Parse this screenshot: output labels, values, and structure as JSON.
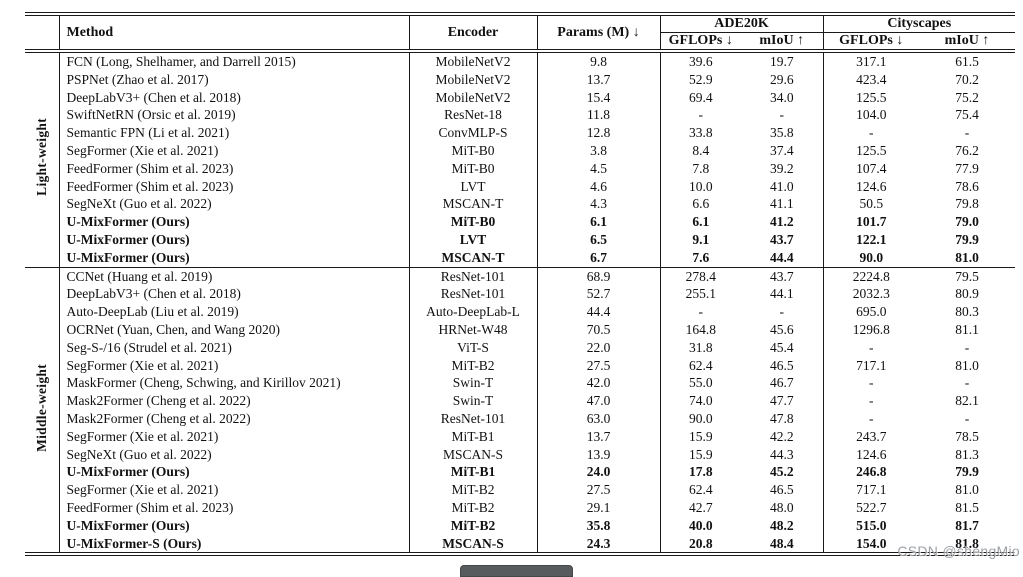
{
  "table": {
    "columns": {
      "method": "Method",
      "encoder": "Encoder",
      "params": "Params (M) ↓",
      "ade20k": "ADE20K",
      "cityscapes": "Cityscapes",
      "gflops": "GFLOPs ↓",
      "miou": "mIoU ↑"
    },
    "sections": [
      {
        "label": "Light-weight",
        "rows": [
          {
            "method": "FCN (Long, Shelhamer, and Darrell 2015)",
            "encoder": "MobileNetV2",
            "params": "9.8",
            "ade_gflops": "39.6",
            "ade_miou": "19.7",
            "city_gflops": "317.1",
            "city_miou": "61.5",
            "bold": false
          },
          {
            "method": "PSPNet (Zhao et al. 2017)",
            "encoder": "MobileNetV2",
            "params": "13.7",
            "ade_gflops": "52.9",
            "ade_miou": "29.6",
            "city_gflops": "423.4",
            "city_miou": "70.2",
            "bold": false
          },
          {
            "method": "DeepLabV3+ (Chen et al. 2018)",
            "encoder": "MobileNetV2",
            "params": "15.4",
            "ade_gflops": "69.4",
            "ade_miou": "34.0",
            "city_gflops": "125.5",
            "city_miou": "75.2",
            "bold": false
          },
          {
            "method": "SwiftNetRN (Orsic et al. 2019)",
            "encoder": "ResNet-18",
            "params": "11.8",
            "ade_gflops": "-",
            "ade_miou": "-",
            "city_gflops": "104.0",
            "city_miou": "75.4",
            "bold": false
          },
          {
            "method": "Semantic FPN (Li et al. 2021)",
            "encoder": "ConvMLP-S",
            "params": "12.8",
            "ade_gflops": "33.8",
            "ade_miou": "35.8",
            "city_gflops": "-",
            "city_miou": "-",
            "bold": false
          },
          {
            "method": "SegFormer (Xie et al. 2021)",
            "encoder": "MiT-B0",
            "params": "3.8",
            "ade_gflops": "8.4",
            "ade_miou": "37.4",
            "city_gflops": "125.5",
            "city_miou": "76.2",
            "bold": false
          },
          {
            "method": "FeedFormer (Shim et al. 2023)",
            "encoder": "MiT-B0",
            "params": "4.5",
            "ade_gflops": "7.8",
            "ade_miou": "39.2",
            "city_gflops": "107.4",
            "city_miou": "77.9",
            "bold": false
          },
          {
            "method": "FeedFormer (Shim et al. 2023)",
            "encoder": "LVT",
            "params": "4.6",
            "ade_gflops": "10.0",
            "ade_miou": "41.0",
            "city_gflops": "124.6",
            "city_miou": "78.6",
            "bold": false
          },
          {
            "method": "SegNeXt (Guo et al. 2022)",
            "encoder": "MSCAN-T",
            "params": "4.3",
            "ade_gflops": "6.6",
            "ade_miou": "41.1",
            "city_gflops": "50.5",
            "city_miou": "79.8",
            "bold": false
          },
          {
            "method": "U-MixFormer (Ours)",
            "encoder": "MiT-B0",
            "params": "6.1",
            "ade_gflops": "6.1",
            "ade_miou": "41.2",
            "city_gflops": "101.7",
            "city_miou": "79.0",
            "bold": true
          },
          {
            "method": "U-MixFormer (Ours)",
            "encoder": "LVT",
            "params": "6.5",
            "ade_gflops": "9.1",
            "ade_miou": "43.7",
            "city_gflops": "122.1",
            "city_miou": "79.9",
            "bold": true
          },
          {
            "method": "U-MixFormer (Ours)",
            "encoder": "MSCAN-T",
            "params": "6.7",
            "ade_gflops": "7.6",
            "ade_miou": "44.4",
            "city_gflops": "90.0",
            "city_miou": "81.0",
            "bold": true
          }
        ]
      },
      {
        "label": "Middle-weight",
        "rows": [
          {
            "method": "CCNet (Huang et al. 2019)",
            "encoder": "ResNet-101",
            "params": "68.9",
            "ade_gflops": "278.4",
            "ade_miou": "43.7",
            "city_gflops": "2224.8",
            "city_miou": "79.5",
            "bold": false
          },
          {
            "method": "DeepLabV3+ (Chen et al. 2018)",
            "encoder": "ResNet-101",
            "params": "52.7",
            "ade_gflops": "255.1",
            "ade_miou": "44.1",
            "city_gflops": "2032.3",
            "city_miou": "80.9",
            "bold": false
          },
          {
            "method": "Auto-DeepLab (Liu et al. 2019)",
            "encoder": "Auto-DeepLab-L",
            "params": "44.4",
            "ade_gflops": "-",
            "ade_miou": "-",
            "city_gflops": "695.0",
            "city_miou": "80.3",
            "bold": false
          },
          {
            "method": "OCRNet (Yuan, Chen, and Wang 2020)",
            "encoder": "HRNet-W48",
            "params": "70.5",
            "ade_gflops": "164.8",
            "ade_miou": "45.6",
            "city_gflops": "1296.8",
            "city_miou": "81.1",
            "bold": false
          },
          {
            "method": "Seg-S-/16 (Strudel et al. 2021)",
            "encoder": "ViT-S",
            "params": "22.0",
            "ade_gflops": "31.8",
            "ade_miou": "45.4",
            "city_gflops": "-",
            "city_miou": "-",
            "bold": false
          },
          {
            "method": "SegFormer (Xie et al. 2021)",
            "encoder": "MiT-B2",
            "params": "27.5",
            "ade_gflops": "62.4",
            "ade_miou": "46.5",
            "city_gflops": "717.1",
            "city_miou": "81.0",
            "bold": false
          },
          {
            "method": "MaskFormer (Cheng, Schwing, and Kirillov 2021)",
            "encoder": "Swin-T",
            "params": "42.0",
            "ade_gflops": "55.0",
            "ade_miou": "46.7",
            "city_gflops": "-",
            "city_miou": "-",
            "bold": false
          },
          {
            "method": "Mask2Former (Cheng et al. 2022)",
            "encoder": "Swin-T",
            "params": "47.0",
            "ade_gflops": "74.0",
            "ade_miou": "47.7",
            "city_gflops": "-",
            "city_miou": "82.1",
            "bold": false
          },
          {
            "method": "Mask2Former (Cheng et al. 2022)",
            "encoder": "ResNet-101",
            "params": "63.0",
            "ade_gflops": "90.0",
            "ade_miou": "47.8",
            "city_gflops": "-",
            "city_miou": "-",
            "bold": false
          },
          {
            "method": "SegFormer (Xie et al. 2021)",
            "encoder": "MiT-B1",
            "params": "13.7",
            "ade_gflops": "15.9",
            "ade_miou": "42.2",
            "city_gflops": "243.7",
            "city_miou": "78.5",
            "bold": false
          },
          {
            "method": "SegNeXt (Guo et al. 2022)",
            "encoder": "MSCAN-S",
            "params": "13.9",
            "ade_gflops": "15.9",
            "ade_miou": "44.3",
            "city_gflops": "124.6",
            "city_miou": "81.3",
            "bold": false
          },
          {
            "method": "U-MixFormer (Ours)",
            "encoder": "MiT-B1",
            "params": "24.0",
            "ade_gflops": "17.8",
            "ade_miou": "45.2",
            "city_gflops": "246.8",
            "city_miou": "79.9",
            "bold": true
          },
          {
            "method": "SegFormer (Xie et al. 2021)",
            "encoder": "MiT-B2",
            "params": "27.5",
            "ade_gflops": "62.4",
            "ade_miou": "46.5",
            "city_gflops": "717.1",
            "city_miou": "81.0",
            "bold": false
          },
          {
            "method": "FeedFormer (Shim et al. 2023)",
            "encoder": "MiT-B2",
            "params": "29.1",
            "ade_gflops": "42.7",
            "ade_miou": "48.0",
            "city_gflops": "522.7",
            "city_miou": "81.5",
            "bold": false
          },
          {
            "method": "U-MixFormer (Ours)",
            "encoder": "MiT-B2",
            "params": "35.8",
            "ade_gflops": "40.0",
            "ade_miou": "48.2",
            "city_gflops": "515.0",
            "city_miou": "81.7",
            "bold": true
          },
          {
            "method": "U-MixFormer-S (Ours)",
            "encoder": "MSCAN-S",
            "params": "24.3",
            "ade_gflops": "20.8",
            "ade_miou": "48.4",
            "city_gflops": "154.0",
            "city_miou": "81.8",
            "bold": true
          }
        ]
      }
    ]
  },
  "watermark": "CSDN @shengMio"
}
